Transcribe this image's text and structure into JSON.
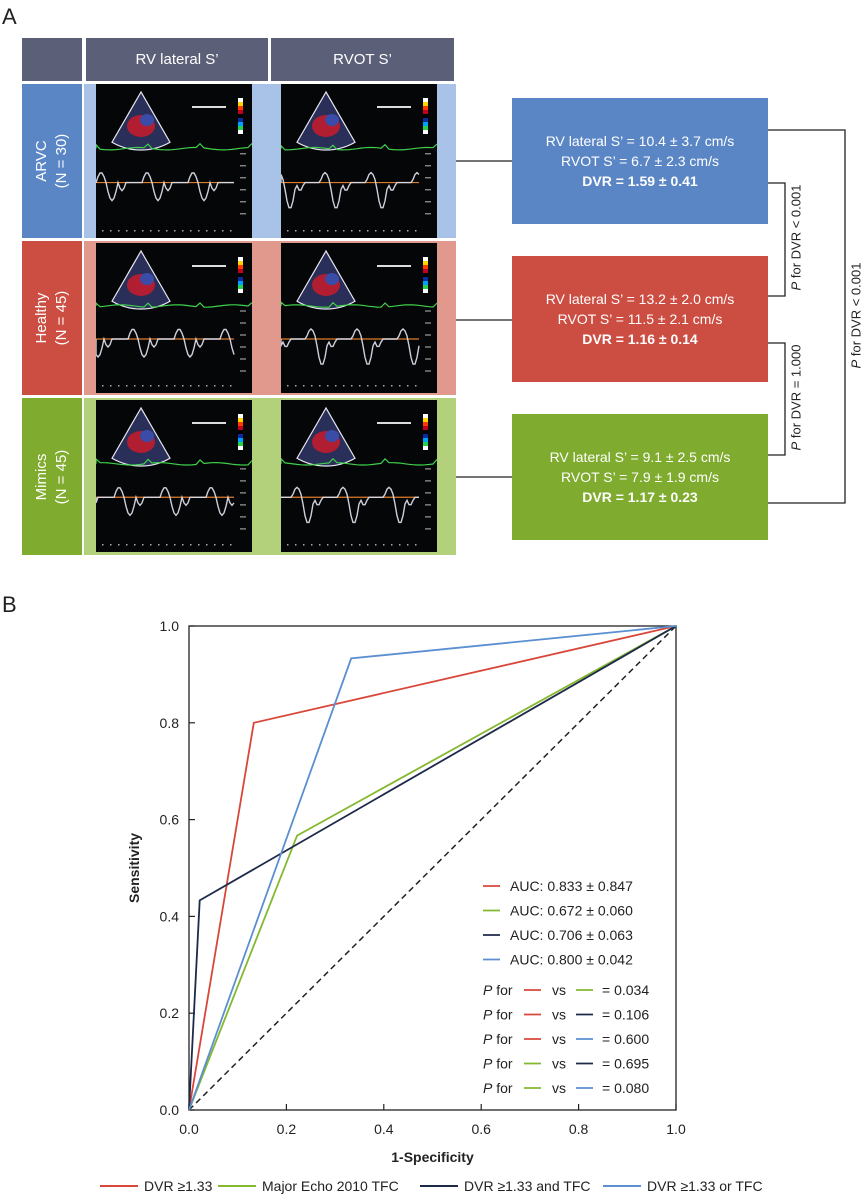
{
  "panel_a": {
    "letter": "A",
    "columns": [
      "RV lateral S’",
      "RVOT S’"
    ],
    "rows": [
      {
        "name": "ARVC",
        "n": "(N = 30)",
        "color": "#5b86c5",
        "bg": "#a9c3e8",
        "stats": {
          "rv": "RV lateral S’ = 10.4 ± 3.7 cm/s",
          "rvot": "RVOT S’ = 6.7 ± 2.3 cm/s",
          "dvr": "DVR = 1.59 ± 0.41"
        }
      },
      {
        "name": "Healthy",
        "n": "(N = 45)",
        "color": "#cc4d42",
        "bg": "#e2998d",
        "stats": {
          "rv": "RV lateral S’ = 13.2 ± 2.0 cm/s",
          "rvot": "RVOT S’ = 11.5 ± 2.1 cm/s",
          "dvr": "DVR = 1.16 ± 0.14"
        }
      },
      {
        "name": "Mimics",
        "n": "(N = 45)",
        "color": "#7fab2e",
        "bg": "#b3d07a",
        "stats": {
          "rv": "RV lateral S’ = 9.1 ± 2.5 cm/s",
          "rvot": "RVOT S’ = 7.9 ± 1.9 cm/s",
          "dvr": "DVR = 1.17 ± 0.23"
        }
      }
    ],
    "p_inner_top": "P for DVR < 0.001",
    "p_inner_bottom": "P for DVR = 1.000",
    "p_outer": "P for DVR < 0.001"
  },
  "panel_b": {
    "letter": "B"
  },
  "chart_data": {
    "type": "line",
    "xlabel": "1-Specificity",
    "ylabel": "Sensitivity",
    "xlim": [
      0,
      1
    ],
    "ylim": [
      0,
      1
    ],
    "xticks": [
      "0.0",
      "0.2",
      "0.4",
      "0.6",
      "0.8",
      "1.0"
    ],
    "yticks": [
      "0.0",
      "0.2",
      "0.4",
      "0.6",
      "0.8",
      "1.0"
    ],
    "grid": false,
    "series": [
      {
        "name": "DVR ≥1.33",
        "color": "#d9473b",
        "x": [
          0,
          0.133,
          1
        ],
        "y": [
          0,
          0.8,
          1
        ]
      },
      {
        "name": "Major Echo 2010 TFC",
        "color": "#84b82e",
        "x": [
          0,
          0.222,
          1
        ],
        "y": [
          0,
          0.567,
          1
        ]
      },
      {
        "name": "DVR ≥1.33 and TFC",
        "color": "#1e2a4a",
        "x": [
          0,
          0.022,
          1
        ],
        "y": [
          0,
          0.433,
          1
        ]
      },
      {
        "name": "DVR ≥1.33 or TFC",
        "color": "#5b8fd0",
        "x": [
          0,
          0.333,
          1
        ],
        "y": [
          0,
          0.933,
          1
        ]
      }
    ],
    "reference_line": {
      "x": [
        0,
        1
      ],
      "y": [
        0,
        1
      ],
      "color": "#222222",
      "style": "dashed"
    },
    "auc": [
      {
        "text": "AUC: 0.833 ± 0.847",
        "color": "#d9473b"
      },
      {
        "text": "AUC: 0.672 ± 0.060",
        "color": "#84b82e"
      },
      {
        "text": "AUC: 0.706 ± 0.063",
        "color": "#1e2a4a"
      },
      {
        "text": "AUC: 0.800 ± 0.042",
        "color": "#5b8fd0"
      }
    ],
    "comparisons": [
      {
        "a": "#d9473b",
        "b": "#84b82e",
        "p": "= 0.034"
      },
      {
        "a": "#d9473b",
        "b": "#1e2a4a",
        "p": "= 0.106"
      },
      {
        "a": "#d9473b",
        "b": "#5b8fd0",
        "p": "= 0.600"
      },
      {
        "a": "#84b82e",
        "b": "#1e2a4a",
        "p": "= 0.695"
      },
      {
        "a": "#84b82e",
        "b": "#5b8fd0",
        "p": "= 0.080"
      }
    ],
    "comparison_words": {
      "p": "P",
      "for": "for",
      "vs": "vs"
    }
  }
}
